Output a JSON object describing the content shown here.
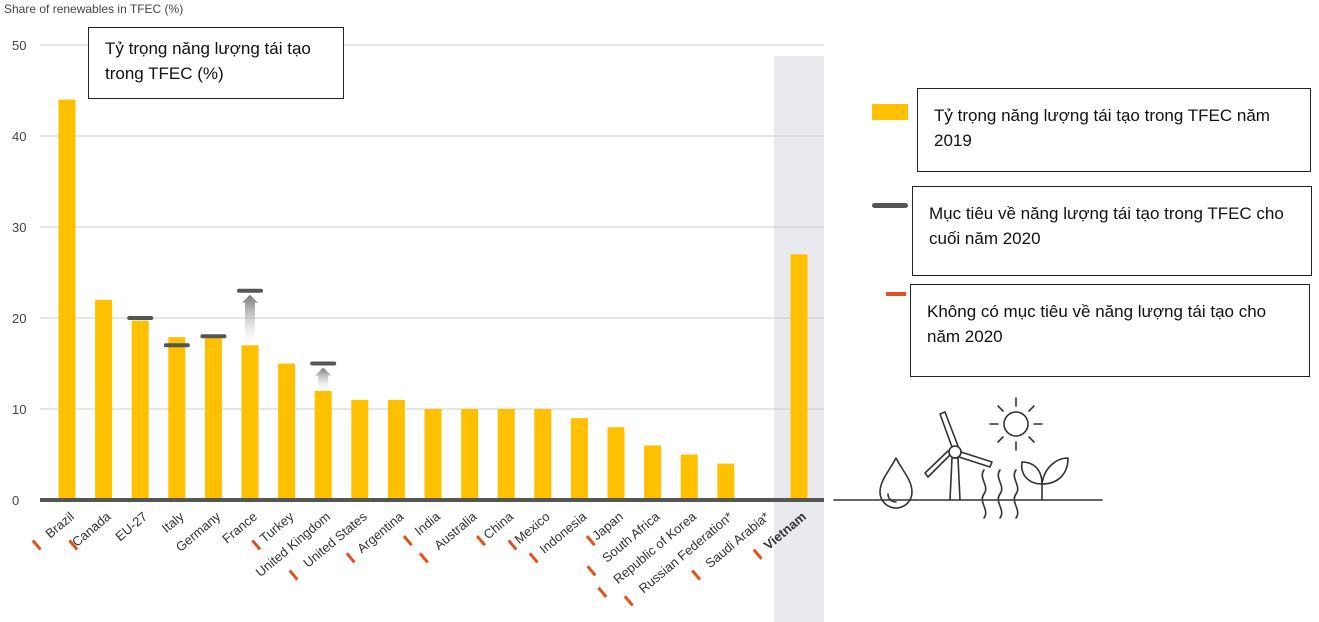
{
  "colors": {
    "bar": "#FFC000",
    "target_marker": "#555555",
    "no_target_marker": "#E0531B",
    "axis": "#555555",
    "grid": "#cccccc",
    "highlight_bg": "#E8EAED"
  },
  "callouts": {
    "axis_title_vi": "Tỷ trọng năng lượng tái tạo trong TFEC (%)",
    "legend_bar": "Tỷ trọng năng lượng tái tạo trong TFEC năm 2019",
    "legend_target": "Mục tiêu về năng lượng tái tạo trong TFEC cho cuối năm 2020",
    "legend_no_target": "Không có mục tiêu về năng lượng tái tạo cho năm 2020"
  },
  "icons": [
    "water-drop-icon",
    "wind-turbine-icon",
    "sun-icon",
    "heat-waves-icon",
    "leaf-sprout-icon"
  ],
  "chart_data": {
    "type": "bar",
    "ylabel": "Share of renewables in TFEC (%)",
    "ylim": [
      0,
      50
    ],
    "yticks": [
      0,
      10,
      20,
      30,
      40,
      50
    ],
    "grid": true,
    "categories": [
      "Brazil",
      "Canada",
      "EU-27",
      "Italy",
      "Germany",
      "France",
      "Turkey",
      "United Kingdom",
      "United States",
      "Argentina",
      "India",
      "Australia",
      "China",
      "Mexico",
      "Indonesia",
      "Japan",
      "South Africa",
      "Republic of Korea",
      "Russian Federation*",
      "Saudi Arabia*",
      "Vietnam"
    ],
    "values": [
      44,
      22,
      19.7,
      17.9,
      17.8,
      17,
      15,
      12,
      11,
      11,
      10,
      10,
      10,
      10,
      9,
      8,
      6,
      5,
      4,
      0,
      27
    ],
    "targets_2020": [
      null,
      null,
      20,
      17,
      18,
      23,
      null,
      15,
      null,
      null,
      null,
      null,
      null,
      null,
      null,
      null,
      null,
      null,
      null,
      null,
      null
    ],
    "no_target_2020": [
      true,
      true,
      false,
      false,
      false,
      false,
      true,
      false,
      true,
      true,
      true,
      true,
      true,
      true,
      true,
      true,
      true,
      true,
      true,
      true,
      true
    ],
    "highlighted": [
      "Vietnam"
    ],
    "bold_labels": [
      "Vietnam"
    ]
  }
}
